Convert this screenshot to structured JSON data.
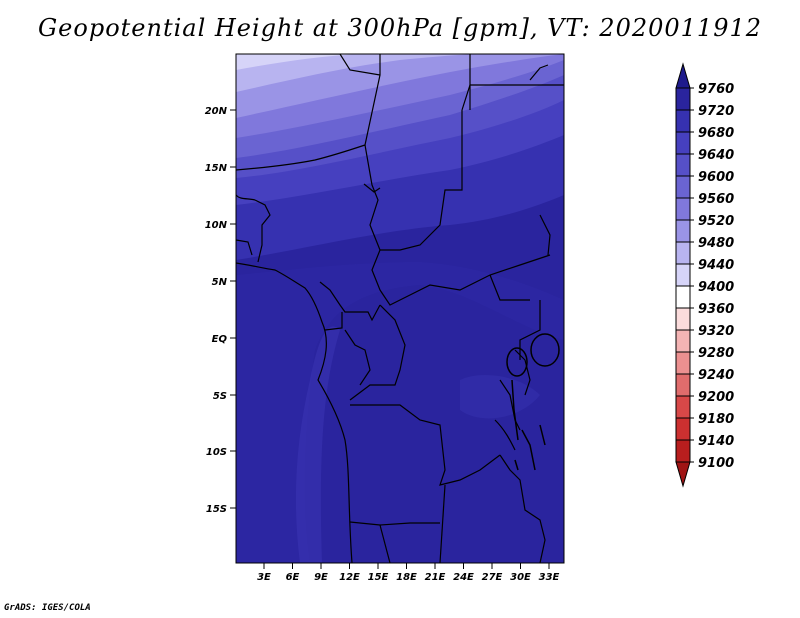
{
  "title": "Geopotential Height at 300hPa [gpm], VT: 2020011912",
  "credit": "GrADS: IGES/COLA",
  "map": {
    "lat_labels": [
      "20N",
      "15N",
      "10N",
      "5N",
      "EQ",
      "5S",
      "10S",
      "15S"
    ],
    "lon_labels": [
      "3E",
      "6E",
      "9E",
      "12E",
      "15E",
      "18E",
      "21E",
      "24E",
      "27E",
      "30E",
      "33E"
    ]
  },
  "colorbar": {
    "labels": [
      "9760",
      "9720",
      "9680",
      "9640",
      "9600",
      "9560",
      "9520",
      "9480",
      "9440",
      "9400",
      "9360",
      "9320",
      "9280",
      "9240",
      "9200",
      "9180",
      "9140",
      "9100"
    ],
    "colors": [
      "#1e1a8c",
      "#2a249e",
      "#3631b0",
      "#4640bf",
      "#5650c8",
      "#6a64d2",
      "#8078dc",
      "#9a94e6",
      "#b8b4f0",
      "#d6d4f8",
      "#ffffff",
      "#fbdcdc",
      "#f4b4b4",
      "#ec9090",
      "#e06c6c",
      "#d84848",
      "#cc3030",
      "#b81e1e",
      "#a01414"
    ]
  }
}
